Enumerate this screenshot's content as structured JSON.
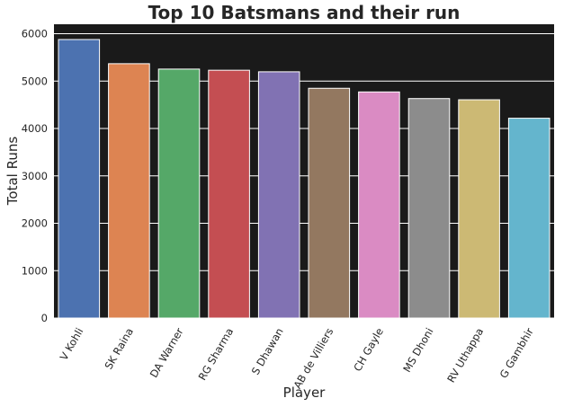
{
  "chart_data": {
    "type": "bar",
    "title": "Top 10 Batsmans and their run",
    "xlabel": "Player",
    "ylabel": "Total Runs",
    "categories": [
      "V Kohli",
      "SK Raina",
      "DA Warner",
      "RG Sharma",
      "S Dhawan",
      "AB de Villiers",
      "CH Gayle",
      "MS Dhoni",
      "RV Uthappa",
      "G Gambhir"
    ],
    "values": [
      5878,
      5368,
      5254,
      5230,
      5197,
      4849,
      4772,
      4632,
      4607,
      4217
    ],
    "colors": [
      "#4c72b0",
      "#dd8452",
      "#55a868",
      "#c44e52",
      "#8172b3",
      "#937860",
      "#da8bc3",
      "#8c8c8c",
      "#ccb974",
      "#64b5cd"
    ],
    "yticks": [
      "0",
      "1000",
      "2000",
      "3000",
      "4000",
      "5000",
      "6000"
    ],
    "ylim": [
      0,
      6200
    ],
    "grid": true,
    "plot_background": "#1a1a1a",
    "grid_color": "#ffffff"
  }
}
